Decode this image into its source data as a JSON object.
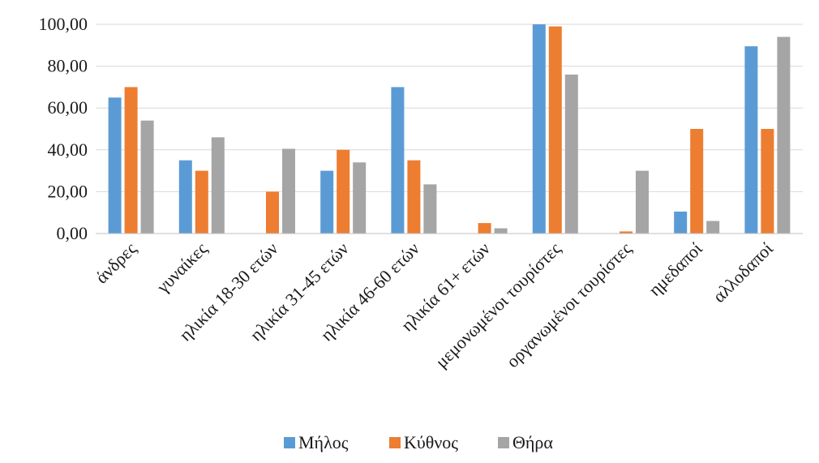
{
  "chart_data": {
    "type": "bar",
    "categories": [
      "άνδρες",
      "γυναίκες",
      "ηλικία 18-30 ετών",
      "ηλικία 31-45 ετών",
      "ηλικία 46-60 ετών",
      "ηλικία 61+ ετών",
      "μεμονωμένοι τουρίστες",
      "οργανωμένοι τουρίστες",
      "ημεδαποί",
      "αλλοδαποί"
    ],
    "series": [
      {
        "name": "Μήλος",
        "color": "#5b9bd5",
        "values": [
          65,
          35,
          0,
          30,
          70,
          0,
          100,
          0,
          10.5,
          89.5
        ]
      },
      {
        "name": "Κύθνος",
        "color": "#ed7d31",
        "values": [
          70,
          30,
          20,
          40,
          35,
          5,
          99,
          1,
          50,
          50
        ]
      },
      {
        "name": "Θήρα",
        "color": "#a5a5a5",
        "values": [
          54,
          46,
          40.5,
          34,
          23.5,
          2.5,
          76,
          30,
          6,
          94
        ]
      }
    ],
    "y_ticks": [
      "0,00",
      "20,00",
      "40,00",
      "60,00",
      "80,00",
      "100,00"
    ],
    "ylim": [
      0,
      100
    ],
    "grid": true,
    "legend_position": "bottom",
    "title": "",
    "xlabel": "",
    "ylabel": ""
  }
}
